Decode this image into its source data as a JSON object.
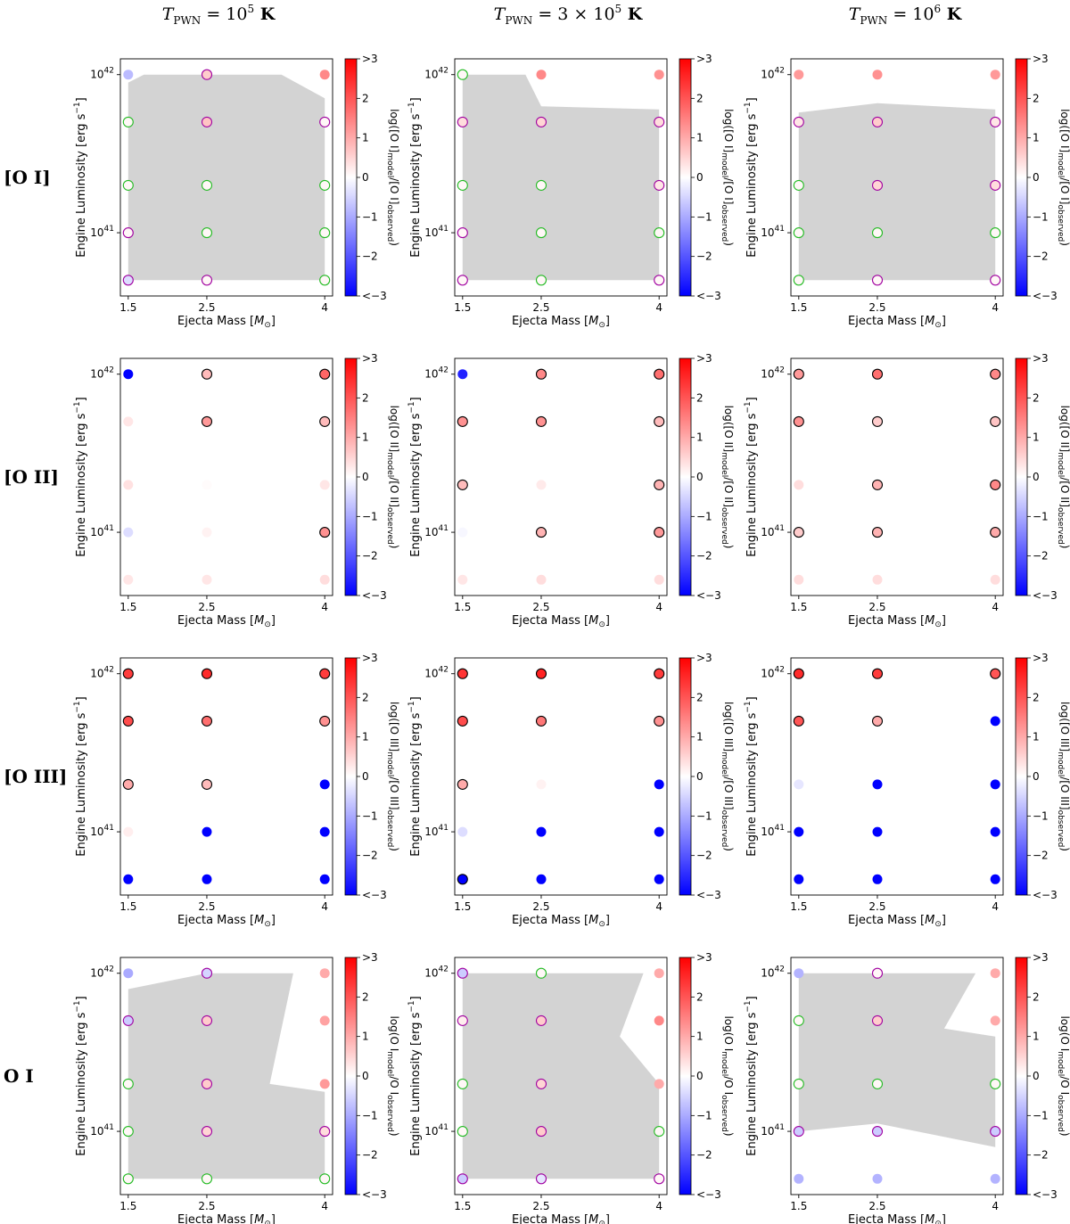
{
  "figure": {
    "column_titles": [
      {
        "prefix": "T",
        "subscript": "PWN",
        "mid": " = 10",
        "exp": "5",
        "unit": "  K"
      },
      {
        "prefix": "T",
        "subscript": "PWN",
        "mid": " = 3 × 10",
        "exp": "5",
        "unit": "  K"
      },
      {
        "prefix": "T",
        "subscript": "PWN",
        "mid": " = 10",
        "exp": "6",
        "unit": "  K"
      }
    ],
    "row_labels": [
      "[O I]",
      "[O II]",
      "[O III]",
      "O I"
    ],
    "colorbar_labels": [
      {
        "pre": "log([O I]",
        "mid": "/[O I]"
      },
      {
        "pre": "log([O II]",
        "mid": "/[O II]"
      },
      {
        "pre": "log([O III]",
        "mid": "/[O III]"
      },
      {
        "pre": "log(O I",
        "mid": "/O I"
      }
    ],
    "colorbar_sub_model": "model",
    "colorbar_sub_observed": "observed",
    "colorbar_ticks": [
      ">3",
      "2",
      "1",
      "0",
      "−1",
      "−2",
      "<−3"
    ],
    "colors": {
      "red": "#ff0000",
      "blue": "#0000ff",
      "consistent_region": "#d3d3d3",
      "edge_green": "#22bb22",
      "edge_purple": "#a000a0",
      "edge_black": "#000000"
    }
  },
  "chart_data": {
    "type": "scatter",
    "xlabel_prefix": "Ejecta Mass [",
    "xlabel_sym": "M",
    "xlabel_sub": "⊙",
    "xlabel_suffix": "]",
    "ylabel_prefix": "Engine Luminosity [erg s",
    "ylabel_exp": "−1",
    "ylabel_suffix": "]",
    "x_ticks": [
      {
        "value": 1.5,
        "label": "1.5"
      },
      {
        "value": 2.5,
        "label": "2.5"
      },
      {
        "value": 4,
        "label": "4"
      }
    ],
    "y_ticks": [
      {
        "log": 41,
        "base": "10",
        "exp": "41"
      },
      {
        "log": 42,
        "base": "10",
        "exp": "42"
      }
    ],
    "masses": [
      1.5,
      2.5,
      4
    ],
    "log_luminosities": [
      40.7,
      41.0,
      41.3,
      41.7,
      42.0
    ],
    "colorbar_range": [
      -3,
      3
    ],
    "panels": [
      {
        "row": 0,
        "col": 0,
        "values": [
          [
            -0.4,
            0.1,
            0.1,
            0.1,
            -0.8
          ],
          [
            0.1,
            0.1,
            0.1,
            0.7,
            0.6
          ],
          [
            0.1,
            0.1,
            0.1,
            0.1,
            1.4
          ]
        ],
        "edges": [
          [
            "purple",
            "purple",
            "green",
            "green",
            "none"
          ],
          [
            "purple",
            "green",
            "green",
            "purple",
            "purple"
          ],
          [
            "green",
            "green",
            "green",
            "purple",
            "none"
          ]
        ],
        "region": [
          [
            1.5,
            40.7
          ],
          [
            4,
            40.7
          ],
          [
            4,
            41.85
          ],
          [
            3.45,
            42.0
          ],
          [
            2.6,
            42.0
          ],
          [
            1.7,
            42.0
          ],
          [
            1.5,
            41.95
          ]
        ]
      },
      {
        "row": 0,
        "col": 1,
        "values": [
          [
            0.1,
            0.1,
            0.1,
            0.4,
            0.1
          ],
          [
            0.1,
            0.1,
            0.1,
            0.5,
            1.4
          ],
          [
            0.1,
            0.1,
            0.3,
            0.4,
            1.3
          ]
        ],
        "edges": [
          [
            "purple",
            "purple",
            "green",
            "purple",
            "green"
          ],
          [
            "green",
            "green",
            "green",
            "purple",
            "none"
          ],
          [
            "purple",
            "green",
            "purple",
            "purple",
            "none"
          ]
        ],
        "region": [
          [
            1.5,
            40.7
          ],
          [
            4,
            40.7
          ],
          [
            4,
            41.78
          ],
          [
            2.5,
            41.8
          ],
          [
            2.3,
            42.0
          ],
          [
            1.5,
            42.0
          ]
        ]
      },
      {
        "row": 0,
        "col": 2,
        "values": [
          [
            0.1,
            0.1,
            0.1,
            0.3,
            1.2
          ],
          [
            0.1,
            0.1,
            0.5,
            0.6,
            1.3
          ],
          [
            0.1,
            0.1,
            0.4,
            0.3,
            1.2
          ]
        ],
        "edges": [
          [
            "green",
            "green",
            "green",
            "purple",
            "none"
          ],
          [
            "purple",
            "green",
            "purple",
            "purple",
            "none"
          ],
          [
            "purple",
            "green",
            "purple",
            "purple",
            "none"
          ]
        ],
        "region": [
          [
            1.5,
            40.7
          ],
          [
            4,
            40.7
          ],
          [
            4,
            41.78
          ],
          [
            2.5,
            41.82
          ],
          [
            1.5,
            41.76
          ]
        ]
      },
      {
        "row": 1,
        "col": 0,
        "values": [
          [
            0.3,
            -0.4,
            0.35,
            0.3,
            -3
          ],
          [
            0.3,
            0.15,
            0.05,
            1.2,
            0.8
          ],
          [
            0.4,
            1.3,
            0.3,
            0.8,
            1.8
          ]
        ],
        "edges": [
          [
            "none",
            "none",
            "none",
            "none",
            "none"
          ],
          [
            "none",
            "none",
            "none",
            "black",
            "black"
          ],
          [
            "none",
            "black",
            "none",
            "black",
            "black"
          ]
        ],
        "region": []
      },
      {
        "row": 1,
        "col": 1,
        "values": [
          [
            0.3,
            -0.1,
            0.8,
            1.3,
            -2.6
          ],
          [
            0.4,
            0.9,
            0.25,
            1.3,
            1.4
          ],
          [
            0.4,
            1.2,
            0.9,
            0.8,
            1.7
          ]
        ],
        "edges": [
          [
            "none",
            "none",
            "black",
            "black",
            "none"
          ],
          [
            "none",
            "black",
            "none",
            "black",
            "black"
          ],
          [
            "none",
            "black",
            "black",
            "black",
            "black"
          ]
        ],
        "region": []
      },
      {
        "row": 1,
        "col": 2,
        "values": [
          [
            0.4,
            0.6,
            0.4,
            1.3,
            1.2
          ],
          [
            0.4,
            0.9,
            0.9,
            0.6,
            1.7
          ],
          [
            0.4,
            1.0,
            1.4,
            0.7,
            1.4
          ]
        ],
        "edges": [
          [
            "none",
            "black",
            "none",
            "black",
            "black"
          ],
          [
            "none",
            "black",
            "black",
            "black",
            "black"
          ],
          [
            "none",
            "black",
            "black",
            "black",
            "black"
          ]
        ],
        "region": []
      },
      {
        "row": 2,
        "col": 0,
        "values": [
          [
            -3,
            0.2,
            1.0,
            2.1,
            2.3
          ],
          [
            -3,
            -3,
            0.8,
            1.7,
            2.5
          ],
          [
            -3,
            -3,
            -3,
            1.3,
            2.3
          ]
        ],
        "edges": [
          [
            "none",
            "none",
            "black",
            "black",
            "black"
          ],
          [
            "none",
            "none",
            "black",
            "black",
            "black"
          ],
          [
            "none",
            "none",
            "none",
            "black",
            "black"
          ]
        ],
        "region": []
      },
      {
        "row": 2,
        "col": 1,
        "values": [
          [
            -3,
            -0.4,
            1.0,
            2.1,
            2.4
          ],
          [
            -3,
            -3,
            0.15,
            1.6,
            2.6
          ],
          [
            -3,
            -3,
            -3,
            1.3,
            2.3
          ]
        ],
        "edges": [
          [
            "black",
            "none",
            "black",
            "black",
            "black"
          ],
          [
            "none",
            "none",
            "none",
            "black",
            "black"
          ],
          [
            "none",
            "none",
            "none",
            "black",
            "black"
          ]
        ],
        "region": []
      },
      {
        "row": 2,
        "col": 2,
        "values": [
          [
            -3,
            -3,
            -0.3,
            2.0,
            2.5
          ],
          [
            -3,
            -3,
            -3,
            1.0,
            2.3
          ],
          [
            -3,
            -3,
            -3,
            -3,
            2.0
          ]
        ],
        "edges": [
          [
            "none",
            "none",
            "none",
            "black",
            "black"
          ],
          [
            "none",
            "none",
            "none",
            "black",
            "black"
          ],
          [
            "none",
            "none",
            "none",
            "none",
            "black"
          ]
        ],
        "region": []
      },
      {
        "row": 3,
        "col": 0,
        "values": [
          [
            0.1,
            0.1,
            0.1,
            -0.6,
            -1.0
          ],
          [
            0.1,
            0.5,
            0.6,
            0.6,
            -0.5
          ],
          [
            0.1,
            0.4,
            1.2,
            1.1,
            1.0
          ]
        ],
        "edges": [
          [
            "green",
            "green",
            "green",
            "purple",
            "none"
          ],
          [
            "green",
            "purple",
            "purple",
            "purple",
            "purple"
          ],
          [
            "green",
            "purple",
            "none",
            "none",
            "none"
          ]
        ],
        "region": [
          [
            1.5,
            40.7
          ],
          [
            4,
            40.7
          ],
          [
            4,
            41.25
          ],
          [
            3.3,
            41.3
          ],
          [
            3.6,
            42.0
          ],
          [
            3.7,
            42.0
          ],
          [
            4,
            42.0
          ],
          [
            2.5,
            42.0
          ],
          [
            1.5,
            41.9
          ]
        ]
      },
      {
        "row": 3,
        "col": 1,
        "values": [
          [
            -0.6,
            0.1,
            0.1,
            0.2,
            -0.6
          ],
          [
            -0.3,
            0.6,
            0.5,
            0.6,
            0.1
          ],
          [
            0.1,
            0.1,
            1.0,
            1.4,
            1.0
          ]
        ],
        "edges": [
          [
            "purple",
            "green",
            "green",
            "purple",
            "purple"
          ],
          [
            "purple",
            "purple",
            "purple",
            "purple",
            "green"
          ],
          [
            "purple",
            "green",
            "none",
            "none",
            "none"
          ]
        ],
        "region": [
          [
            1.5,
            40.7
          ],
          [
            4,
            40.7
          ],
          [
            4,
            41.3
          ],
          [
            3.5,
            41.6
          ],
          [
            3.8,
            42.0
          ],
          [
            1.5,
            42.0
          ]
        ]
      },
      {
        "row": 3,
        "col": 2,
        "values": [
          [
            -0.9,
            -0.6,
            0.1,
            0.1,
            -0.9
          ],
          [
            -0.9,
            -0.6,
            0.1,
            0.6,
            0.1
          ],
          [
            -0.9,
            -0.6,
            0.1,
            1.0,
            1.0
          ]
        ],
        "edges": [
          [
            "none",
            "purple",
            "green",
            "green",
            "none"
          ],
          [
            "none",
            "purple",
            "green",
            "purple",
            "purple"
          ],
          [
            "none",
            "purple",
            "green",
            "none",
            "none"
          ]
        ],
        "region": [
          [
            1.5,
            41.0
          ],
          [
            2.5,
            41.05
          ],
          [
            4,
            40.9
          ],
          [
            4,
            41.6
          ],
          [
            3.35,
            41.65
          ],
          [
            3.75,
            42.0
          ],
          [
            1.5,
            42.0
          ]
        ]
      }
    ]
  }
}
